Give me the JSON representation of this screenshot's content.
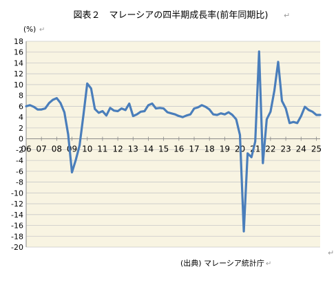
{
  "title": "図表２　マレーシアの四半期成長率(前年同期比)",
  "source": "(出典) マレーシア統計庁",
  "colors": {
    "plot_background": "#f8f4e2",
    "line": "#4a7ebb",
    "gridline": "#c8c8c8",
    "axis": "#888888",
    "edit_mark": "#999999"
  },
  "chart_data": {
    "type": "line",
    "title": "図表２　マレーシアの四半期成長率(前年同期比)",
    "ylabel": "(%)",
    "xlabel": "",
    "ylim": [
      -20,
      18
    ],
    "yticks": [
      18,
      16,
      14,
      12,
      10,
      8,
      6,
      4,
      2,
      0,
      -2,
      -4,
      -6,
      -8,
      -10,
      -12,
      -14,
      -16,
      -18,
      -20
    ],
    "xlim": [
      2006.0,
      2025.25
    ],
    "xticks": [
      {
        "x": 2006,
        "label": "06"
      },
      {
        "x": 2007,
        "label": "07"
      },
      {
        "x": 2008,
        "label": "08"
      },
      {
        "x": 2009,
        "label": "09"
      },
      {
        "x": 2010,
        "label": "10"
      },
      {
        "x": 2011,
        "label": "11"
      },
      {
        "x": 2012,
        "label": "12"
      },
      {
        "x": 2013,
        "label": "13"
      },
      {
        "x": 2014,
        "label": "14"
      },
      {
        "x": 2015,
        "label": "15"
      },
      {
        "x": 2016,
        "label": "16"
      },
      {
        "x": 2017,
        "label": "17"
      },
      {
        "x": 2018,
        "label": "18"
      },
      {
        "x": 2019,
        "label": "19"
      },
      {
        "x": 2020,
        "label": "20"
      },
      {
        "x": 2021,
        "label": "21"
      },
      {
        "x": 2022,
        "label": "22"
      },
      {
        "x": 2023,
        "label": "23"
      },
      {
        "x": 2024,
        "label": "24"
      },
      {
        "x": 2025,
        "label": "25"
      }
    ],
    "grid": "horizontal",
    "legend": "none",
    "series": [
      {
        "points": [
          [
            2006.0,
            6.0
          ],
          [
            2006.25,
            6.2
          ],
          [
            2006.5,
            5.9
          ],
          [
            2006.75,
            5.4
          ],
          [
            2007.0,
            5.4
          ],
          [
            2007.25,
            5.6
          ],
          [
            2007.5,
            6.6
          ],
          [
            2007.75,
            7.2
          ],
          [
            2008.0,
            7.5
          ],
          [
            2008.25,
            6.6
          ],
          [
            2008.5,
            4.9
          ],
          [
            2008.75,
            0.8
          ],
          [
            2009.0,
            -6.2
          ],
          [
            2009.25,
            -3.9
          ],
          [
            2009.5,
            -1.2
          ],
          [
            2009.75,
            4.4
          ],
          [
            2010.0,
            10.2
          ],
          [
            2010.25,
            9.3
          ],
          [
            2010.5,
            5.5
          ],
          [
            2010.75,
            4.8
          ],
          [
            2011.0,
            5.1
          ],
          [
            2011.25,
            4.3
          ],
          [
            2011.5,
            5.7
          ],
          [
            2011.75,
            5.2
          ],
          [
            2012.0,
            5.1
          ],
          [
            2012.25,
            5.6
          ],
          [
            2012.5,
            5.3
          ],
          [
            2012.75,
            6.5
          ],
          [
            2013.0,
            4.2
          ],
          [
            2013.25,
            4.5
          ],
          [
            2013.5,
            5.0
          ],
          [
            2013.75,
            5.1
          ],
          [
            2014.0,
            6.2
          ],
          [
            2014.25,
            6.5
          ],
          [
            2014.5,
            5.6
          ],
          [
            2014.75,
            5.7
          ],
          [
            2015.0,
            5.6
          ],
          [
            2015.25,
            4.9
          ],
          [
            2015.5,
            4.7
          ],
          [
            2015.75,
            4.5
          ],
          [
            2016.0,
            4.2
          ],
          [
            2016.25,
            4.0
          ],
          [
            2016.5,
            4.3
          ],
          [
            2016.75,
            4.5
          ],
          [
            2017.0,
            5.6
          ],
          [
            2017.25,
            5.8
          ],
          [
            2017.5,
            6.2
          ],
          [
            2017.75,
            5.9
          ],
          [
            2018.0,
            5.4
          ],
          [
            2018.25,
            4.5
          ],
          [
            2018.5,
            4.4
          ],
          [
            2018.75,
            4.7
          ],
          [
            2019.0,
            4.5
          ],
          [
            2019.25,
            4.9
          ],
          [
            2019.5,
            4.4
          ],
          [
            2019.75,
            3.6
          ],
          [
            2020.0,
            0.7
          ],
          [
            2020.25,
            -17.1
          ],
          [
            2020.5,
            -2.7
          ],
          [
            2020.75,
            -3.4
          ],
          [
            2021.0,
            -0.5
          ],
          [
            2021.25,
            16.1
          ],
          [
            2021.5,
            -4.5
          ],
          [
            2021.75,
            3.6
          ],
          [
            2022.0,
            5.0
          ],
          [
            2022.25,
            8.9
          ],
          [
            2022.5,
            14.2
          ],
          [
            2022.75,
            7.0
          ],
          [
            2023.0,
            5.6
          ],
          [
            2023.25,
            2.9
          ],
          [
            2023.5,
            3.1
          ],
          [
            2023.75,
            2.9
          ],
          [
            2024.0,
            4.2
          ],
          [
            2024.25,
            5.9
          ],
          [
            2024.5,
            5.3
          ],
          [
            2024.75,
            5.0
          ],
          [
            2025.0,
            4.4
          ],
          [
            2025.25,
            4.4
          ]
        ]
      }
    ]
  }
}
